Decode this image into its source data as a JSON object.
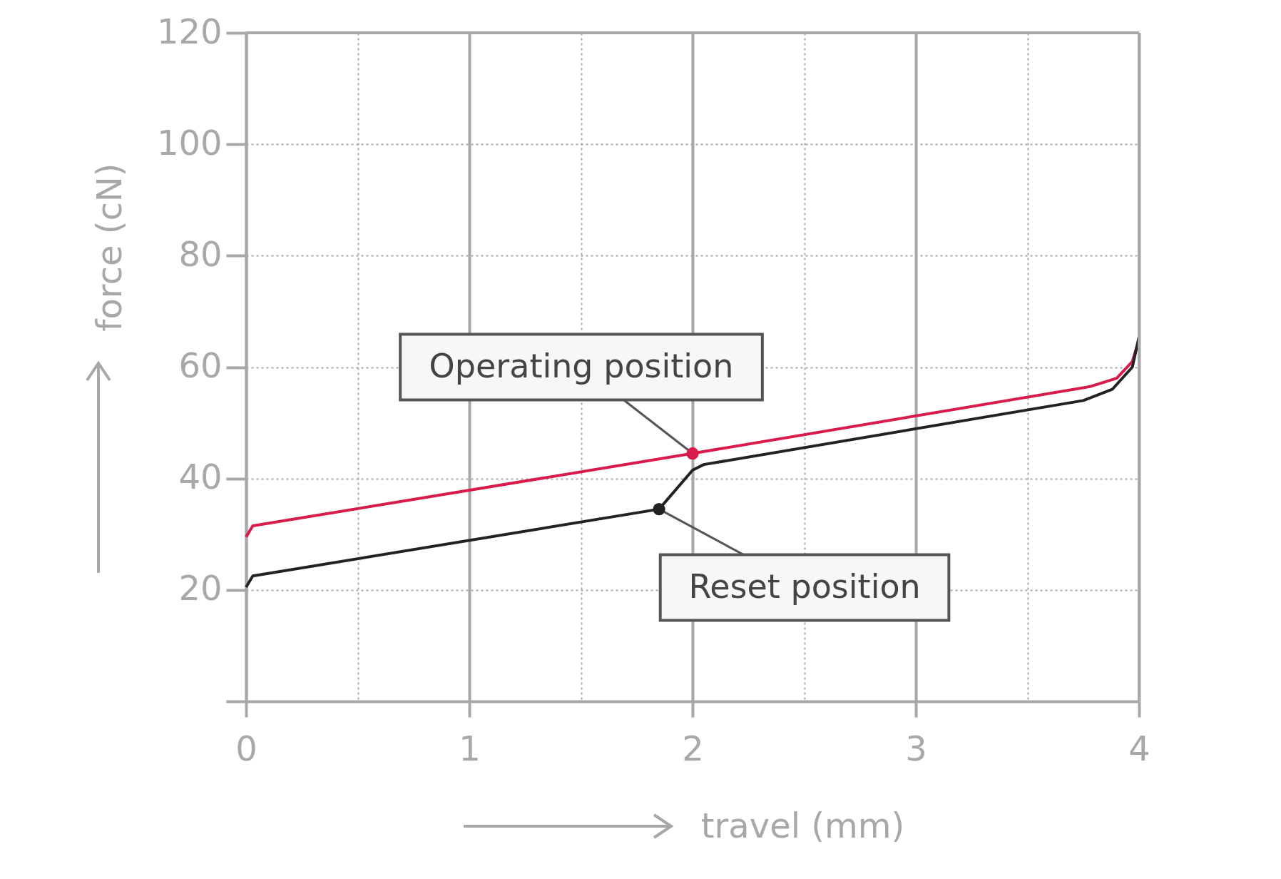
{
  "chart_data": {
    "type": "line",
    "xlabel": "travel (mm)",
    "ylabel": "force (cN)",
    "xlim": [
      0,
      4
    ],
    "ylim": [
      0,
      120
    ],
    "xticks": [
      0,
      {
        "value": 0.5,
        "label": null
      },
      1,
      {
        "value": 1.5,
        "label": null
      },
      2,
      {
        "value": 2.5,
        "label": null
      },
      3,
      {
        "value": 3.5,
        "label": null
      },
      4
    ],
    "yticks": [
      {
        "value": 0,
        "label": null
      },
      20,
      40,
      60,
      80,
      100,
      120
    ],
    "grid": true,
    "marker": "none",
    "line_style": "solid",
    "series": [
      {
        "color": "#d81b4a",
        "x": [
          0,
          0.03,
          2,
          3.78,
          3.9,
          3.97,
          4
        ],
        "values": [
          29.5,
          31.5,
          44.5,
          56.5,
          58,
          61,
          65
        ]
      },
      {
        "color": "#222222",
        "x": [
          0,
          0.03,
          1.85,
          2,
          2.05,
          3.75,
          3.88,
          3.97,
          4
        ],
        "values": [
          20.5,
          22.5,
          34.5,
          41.5,
          42.5,
          54,
          56,
          60,
          65.5
        ]
      }
    ],
    "annotations": [
      {
        "text": "Operating position",
        "x": 2,
        "y": 44.5
      },
      {
        "text": "Reset position",
        "x": 1.85,
        "y": 34.5
      }
    ]
  }
}
